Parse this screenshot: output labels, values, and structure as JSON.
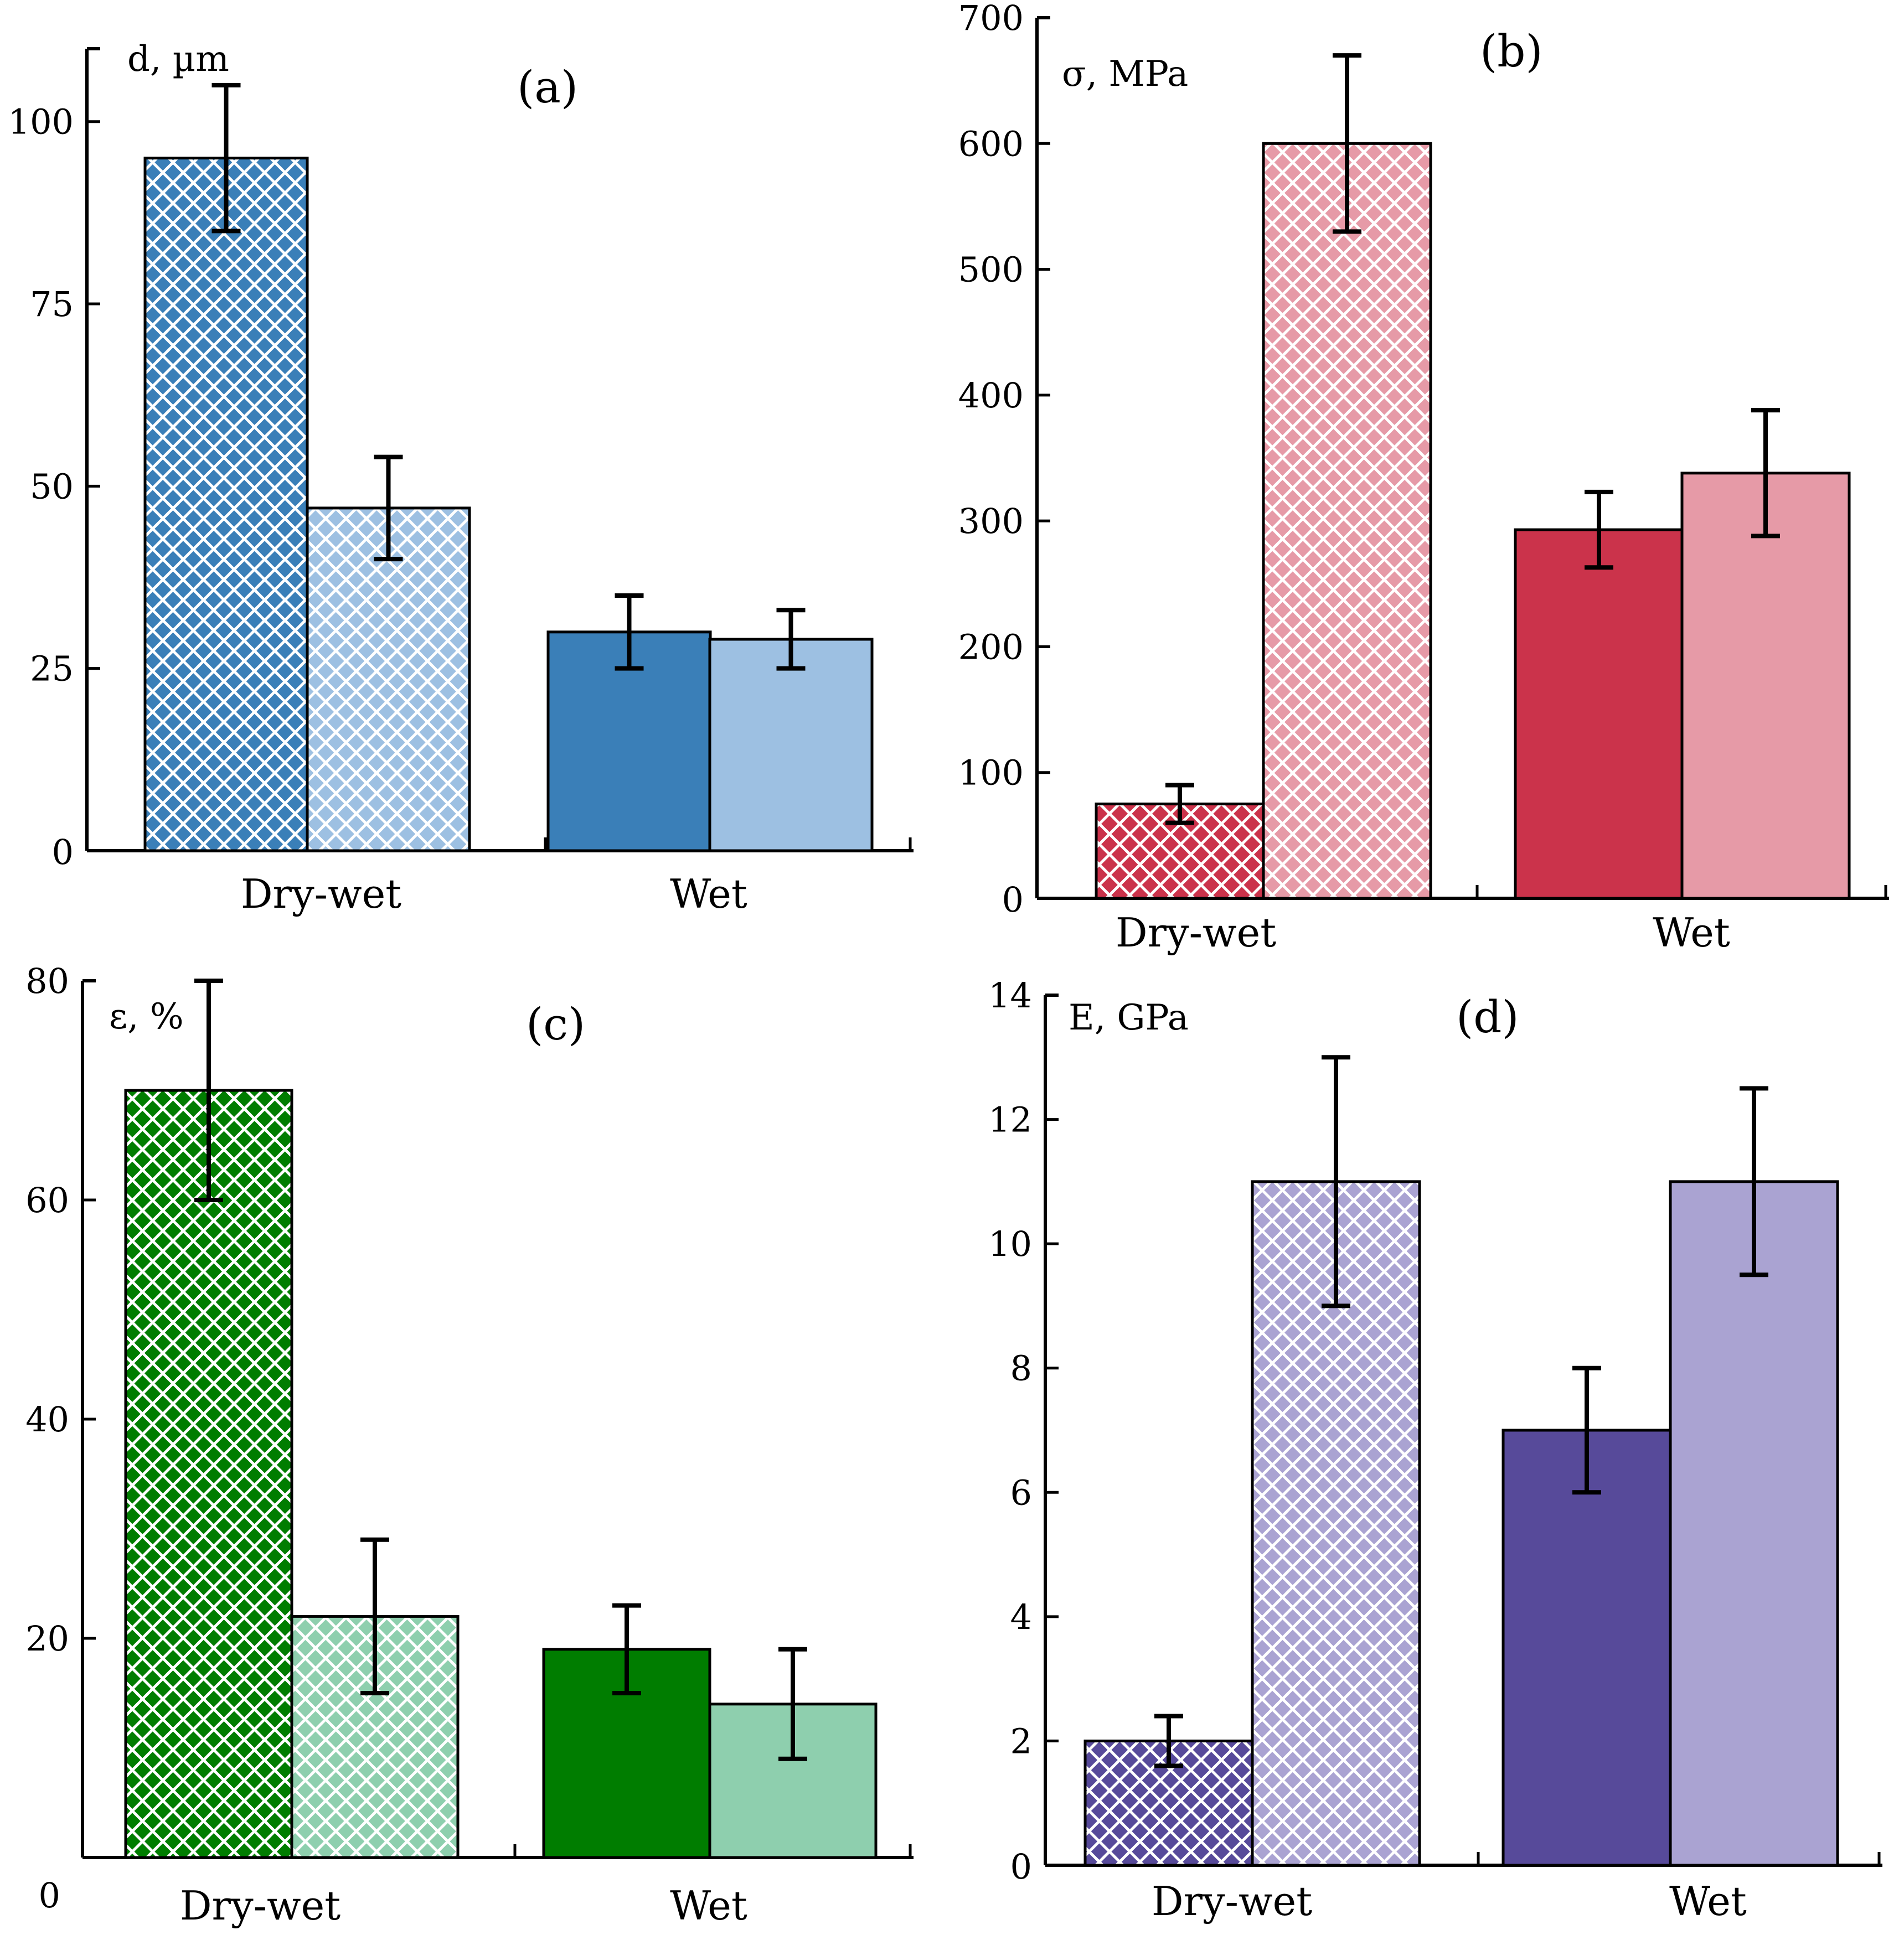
{
  "colors": {
    "blue_dark": "#3a7fb8",
    "blue_light": "#9dc0e2",
    "red_dark": "#cb334b",
    "red_light": "#e69aa7",
    "green_dark": "#007d00",
    "green_light": "#8ecfae",
    "purple_dark": "#574a9a",
    "purple_light": "#aaa3d2",
    "axis": "#000000",
    "error_bar": "#000000"
  },
  "chart_data": [
    {
      "id": "a",
      "type": "bar",
      "panel_label": "(a)",
      "ylabel": "d, µm",
      "categories": [
        "Dry-wet",
        "Wet"
      ],
      "ylim": [
        0,
        110
      ],
      "yticks": [
        0,
        25,
        50,
        75,
        100
      ],
      "series": [
        {
          "name": "Dry-wet dark (hatched)",
          "category": 0,
          "value": 95,
          "err": 10,
          "color_key": "blue_dark",
          "hatched": true
        },
        {
          "name": "Dry-wet light (hatched)",
          "category": 0,
          "value": 47,
          "err": 7,
          "color_key": "blue_light",
          "hatched": true
        },
        {
          "name": "Wet dark",
          "category": 1,
          "value": 30,
          "err": 5,
          "color_key": "blue_dark",
          "hatched": false
        },
        {
          "name": "Wet light",
          "category": 1,
          "value": 29,
          "err": 4,
          "color_key": "blue_light",
          "hatched": false
        }
      ]
    },
    {
      "id": "b",
      "type": "bar",
      "panel_label": "(b)",
      "ylabel": "σ, MPa",
      "categories": [
        "Dry-wet",
        "Wet"
      ],
      "ylim": [
        0,
        700
      ],
      "yticks": [
        0,
        100,
        200,
        300,
        400,
        500,
        600,
        700
      ],
      "series": [
        {
          "name": "Dry-wet dark (hatched)",
          "category": 0,
          "value": 75,
          "err": 15,
          "color_key": "red_dark",
          "hatched": true
        },
        {
          "name": "Dry-wet light (hatched)",
          "category": 0,
          "value": 600,
          "err": 70,
          "color_key": "red_light",
          "hatched": true
        },
        {
          "name": "Wet dark",
          "category": 1,
          "value": 293,
          "err": 30,
          "color_key": "red_dark",
          "hatched": false
        },
        {
          "name": "Wet light",
          "category": 1,
          "value": 338,
          "err": 50,
          "color_key": "red_light",
          "hatched": false
        }
      ]
    },
    {
      "id": "c",
      "type": "bar",
      "panel_label": "(c)",
      "ylabel": "ε, %",
      "categories": [
        "Dry-wet",
        "Wet"
      ],
      "ylim": [
        0,
        80
      ],
      "yticks": [
        0,
        20,
        40,
        60,
        80
      ],
      "series": [
        {
          "name": "Dry-wet dark (hatched)",
          "category": 0,
          "value": 70,
          "err": 10,
          "color_key": "green_dark",
          "hatched": true
        },
        {
          "name": "Dry-wet light (hatched)",
          "category": 0,
          "value": 22,
          "err": 7,
          "color_key": "green_light",
          "hatched": true
        },
        {
          "name": "Wet dark",
          "category": 1,
          "value": 19,
          "err": 4,
          "color_key": "green_dark",
          "hatched": false
        },
        {
          "name": "Wet light",
          "category": 1,
          "value": 14,
          "err": 5,
          "color_key": "green_light",
          "hatched": false
        }
      ]
    },
    {
      "id": "d",
      "type": "bar",
      "panel_label": "(d)",
      "ylabel": "E, GPa",
      "categories": [
        "Dry-wet",
        "Wet"
      ],
      "ylim": [
        0,
        14
      ],
      "yticks": [
        0,
        2,
        4,
        6,
        8,
        10,
        12,
        14
      ],
      "series": [
        {
          "name": "Dry-wet dark (hatched)",
          "category": 0,
          "value": 2,
          "err": 0.4,
          "color_key": "purple_dark",
          "hatched": true
        },
        {
          "name": "Dry-wet light (hatched)",
          "category": 0,
          "value": 11,
          "err": 2,
          "color_key": "purple_light",
          "hatched": true
        },
        {
          "name": "Wet dark",
          "category": 1,
          "value": 7,
          "err": 1,
          "color_key": "purple_dark",
          "hatched": false
        },
        {
          "name": "Wet light",
          "category": 1,
          "value": 11,
          "err": 1.5,
          "color_key": "purple_light",
          "hatched": false
        }
      ]
    }
  ]
}
